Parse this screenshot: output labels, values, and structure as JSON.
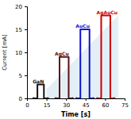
{
  "chart_data": {
    "type": "line",
    "xlabel": "Time [s]",
    "ylabel": "Current [mA]",
    "xlim": [
      0,
      75
    ],
    "ylim": [
      0,
      20
    ],
    "xticks": [
      0,
      15,
      30,
      45,
      60,
      75
    ],
    "yticks": [
      0,
      5,
      10,
      15,
      20
    ],
    "shaded_area": {
      "x": [
        15,
        15,
        70,
        70
      ],
      "y": [
        0,
        2,
        18,
        0
      ],
      "color": "#b8d8e8"
    },
    "series": [
      {
        "name": "GaN",
        "color": "#111111",
        "x": [
          5,
          8,
          8,
          13,
          13,
          16
        ],
        "values": [
          0,
          0,
          3,
          3,
          0,
          0
        ]
      },
      {
        "name": "AgCu",
        "color": "#5a1010",
        "x": [
          22,
          25,
          25,
          32,
          32,
          35
        ],
        "values": [
          0,
          0,
          9,
          9,
          0,
          0
        ]
      },
      {
        "name": "AuCu",
        "color": "#1111cc",
        "x": [
          38,
          41,
          41,
          48,
          48,
          51
        ],
        "values": [
          0,
          0,
          15,
          15,
          0,
          0
        ]
      },
      {
        "name": "AgAuCu",
        "color": "#cc0000",
        "x": [
          54,
          57,
          57,
          64,
          64,
          67
        ],
        "values": [
          0,
          0,
          18,
          18,
          0,
          0
        ]
      }
    ]
  }
}
